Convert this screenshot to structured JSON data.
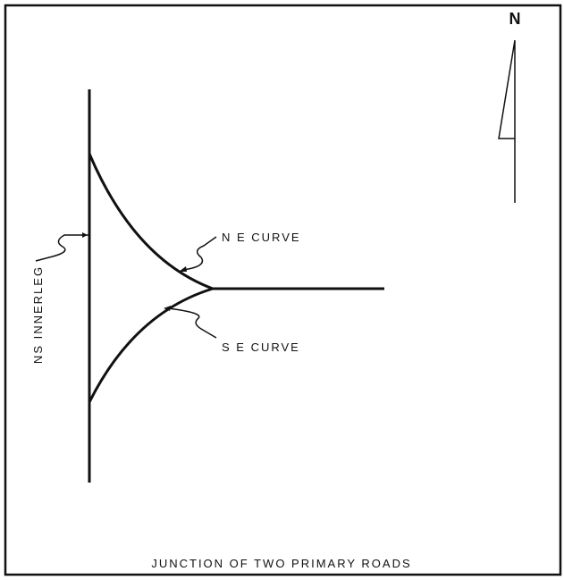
{
  "title": "JUNCTION OF TWO PRIMARY ROADS",
  "north": "N",
  "labels": {
    "ns_innerleg": "NS INNERLEG",
    "ne_curve": "N E  CURVE",
    "se_curve": "S E  CURVE"
  }
}
